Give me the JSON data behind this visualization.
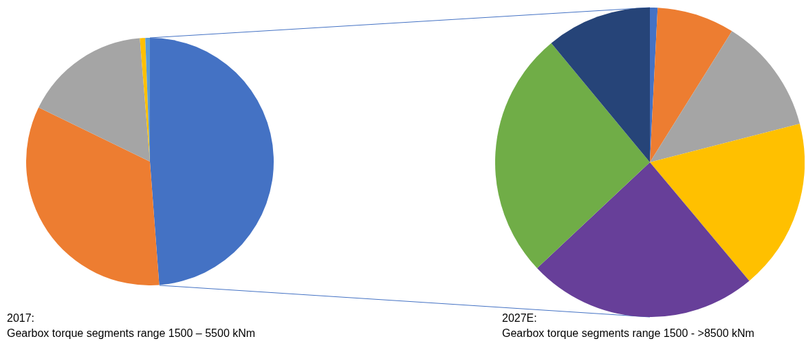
{
  "chart_data": [
    {
      "type": "pie",
      "title": "2017:",
      "subtitle": "Gearbox torque segments range 1500 – 5500 kNm",
      "categories": [
        null,
        null,
        null,
        null,
        null
      ],
      "values": [
        48.8,
        33.4,
        16.5,
        0.7,
        0.6
      ],
      "colors": [
        "#4472c4",
        "#ed7d31",
        "#a5a5a5",
        "#ffc000",
        "#5b9bd5"
      ],
      "legend": false
    },
    {
      "type": "pie",
      "title": "2027E:",
      "subtitle": "Gearbox torque segments range 1500  -  >8500 kNm",
      "categories": [
        null,
        null,
        null,
        null,
        null,
        null,
        null
      ],
      "values": [
        0.8,
        8.1,
        12.1,
        17.9,
        24.1,
        26.0,
        11.0
      ],
      "colors": [
        "#4472c4",
        "#ed7d31",
        "#a5a5a5",
        "#ffc000",
        "#673f99",
        "#70ad47",
        "#264478"
      ],
      "legend": false
    }
  ]
}
